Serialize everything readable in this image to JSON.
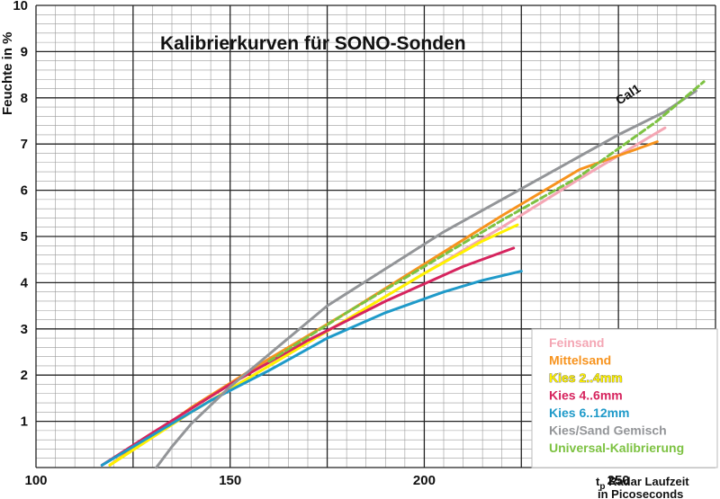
{
  "chart_data": {
    "type": "line",
    "title": "Kalibrierkurven für SONO-Sonden",
    "ylabel": "Feuchte in %",
    "xlabel": {
      "prefix": "t",
      "sub": "p",
      "line1_rest": " Radar Laufzeit",
      "line2": "in Picoseconds"
    },
    "xlim": [
      100,
      275
    ],
    "ylim": [
      0,
      10
    ],
    "x_ticks": [
      "100",
      "150",
      "200",
      "250"
    ],
    "y_ticks": [
      "1",
      "2",
      "3",
      "4",
      "5",
      "6",
      "7",
      "8",
      "9",
      "10"
    ],
    "grid": true,
    "legend_position": "bottom-right",
    "annotation": "Cal1",
    "series": [
      {
        "name": "Feinsand",
        "color": "#f4a6b4",
        "dashed": false,
        "x": [
          119,
          140,
          160,
          180,
          200,
          220,
          240,
          262
        ],
        "y": [
          0.05,
          1.2,
          2.2,
          3.2,
          4.2,
          5.2,
          6.25,
          7.35
        ]
      },
      {
        "name": "Mittelsand",
        "color": "#f7931e",
        "dashed": false,
        "x": [
          119,
          140,
          160,
          180,
          200,
          220,
          240,
          260
        ],
        "y": [
          0.05,
          1.3,
          2.35,
          3.35,
          4.4,
          5.45,
          6.45,
          7.05
        ]
      },
      {
        "name": "Kies 2..4mm",
        "color": "#fff200",
        "dashed": false,
        "x": [
          119,
          140,
          160,
          180,
          200,
          215,
          224
        ],
        "y": [
          0.05,
          1.2,
          2.2,
          3.2,
          4.2,
          4.9,
          5.25
        ]
      },
      {
        "name": "Kies 4..6mm",
        "color": "#d6245e",
        "dashed": false,
        "x": [
          117,
          130,
          150,
          170,
          190,
          210,
          223
        ],
        "y": [
          0.05,
          0.75,
          1.8,
          2.75,
          3.6,
          4.35,
          4.75
        ]
      },
      {
        "name": "Kies 6..12mm",
        "color": "#1f9ac9",
        "dashed": false,
        "x": [
          117,
          130,
          145,
          160,
          175,
          190,
          205,
          215,
          225
        ],
        "y": [
          0.05,
          0.7,
          1.45,
          2.1,
          2.8,
          3.35,
          3.8,
          4.05,
          4.25
        ]
      },
      {
        "name": "Kies/Sand Gemisch",
        "color": "#939598",
        "dashed": false,
        "x": [
          131,
          135,
          140,
          150,
          160,
          175,
          190,
          205,
          220,
          235,
          250,
          262,
          270
        ],
        "y": [
          0.0,
          0.45,
          0.95,
          1.75,
          2.45,
          3.5,
          4.3,
          5.1,
          5.8,
          6.5,
          7.2,
          7.7,
          8.15
        ]
      },
      {
        "name": "Universal-Kalibrierung",
        "color": "#7dc242",
        "dashed": true,
        "x": [
          160,
          180,
          200,
          220,
          240,
          260,
          272
        ],
        "y": [
          2.3,
          3.35,
          4.35,
          5.35,
          6.3,
          7.5,
          8.35
        ]
      }
    ]
  }
}
